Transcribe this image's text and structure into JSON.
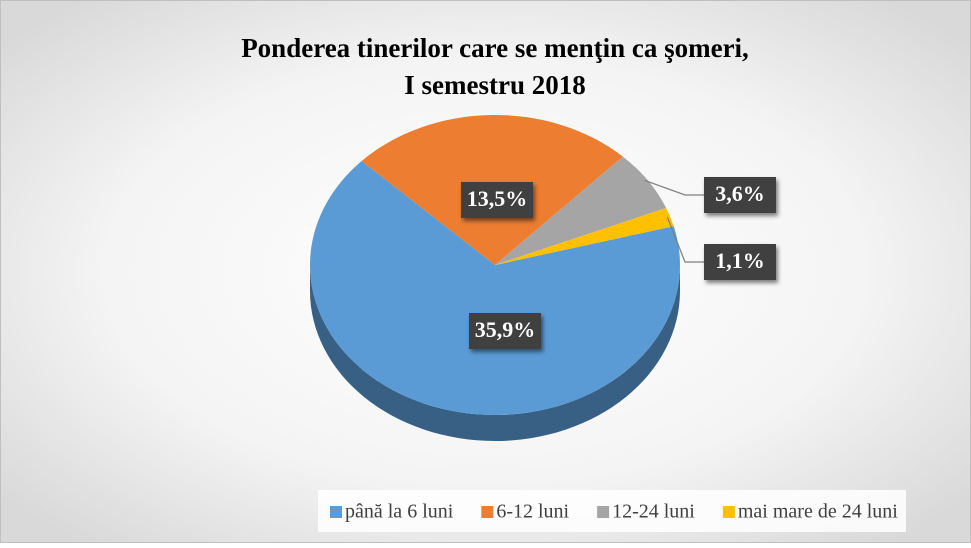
{
  "chart_data": {
    "type": "pie",
    "title": [
      "Ponderea tinerilor care se menţin ca şomeri,",
      "I semestru 2018"
    ],
    "categories": [
      "până la 6 luni",
      "6-12 luni",
      "12-24 luni",
      "mai mare de 24 luni"
    ],
    "values": [
      35.9,
      13.5,
      3.6,
      1.1
    ],
    "value_labels": [
      "35,9%",
      "13,5%",
      "3,6%",
      "1,1%"
    ],
    "colors": [
      "#5b9bd5",
      "#ed7d31",
      "#a5a5a5",
      "#ffc000"
    ],
    "legend": "bottom"
  }
}
